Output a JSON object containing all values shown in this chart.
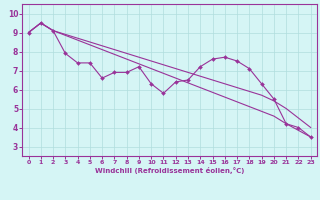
{
  "xlabel": "Windchill (Refroidissement éolien,°C)",
  "x": [
    0,
    1,
    2,
    3,
    4,
    5,
    6,
    7,
    8,
    9,
    10,
    11,
    12,
    13,
    14,
    15,
    16,
    17,
    18,
    19,
    20,
    21,
    22,
    23
  ],
  "y_main": [
    9.0,
    9.5,
    9.1,
    7.9,
    7.4,
    7.4,
    6.6,
    6.9,
    6.9,
    7.2,
    6.3,
    5.8,
    6.4,
    6.5,
    7.2,
    7.6,
    7.7,
    7.5,
    7.1,
    6.3,
    5.5,
    4.2,
    4.0,
    3.5
  ],
  "y_line1": [
    9.0,
    9.5,
    9.1,
    8.85,
    8.6,
    8.35,
    8.1,
    7.85,
    7.6,
    7.35,
    7.1,
    6.85,
    6.6,
    6.35,
    6.1,
    5.85,
    5.6,
    5.35,
    5.1,
    4.85,
    4.6,
    4.2,
    3.85,
    3.5
  ],
  "y_line2": [
    9.0,
    9.5,
    9.1,
    8.9,
    8.7,
    8.5,
    8.3,
    8.1,
    7.9,
    7.7,
    7.5,
    7.3,
    7.1,
    6.9,
    6.7,
    6.5,
    6.3,
    6.1,
    5.9,
    5.7,
    5.4,
    5.0,
    4.5,
    4.0
  ],
  "color": "#993399",
  "bg_color": "#d5f5f5",
  "grid_color": "#b0dede",
  "ylim": [
    2.5,
    10.5
  ],
  "xlim": [
    -0.5,
    23.5
  ],
  "yticks": [
    3,
    4,
    5,
    6,
    7,
    8,
    9,
    10
  ],
  "xticks": [
    0,
    1,
    2,
    3,
    4,
    5,
    6,
    7,
    8,
    9,
    10,
    11,
    12,
    13,
    14,
    15,
    16,
    17,
    18,
    19,
    20,
    21,
    22,
    23
  ]
}
